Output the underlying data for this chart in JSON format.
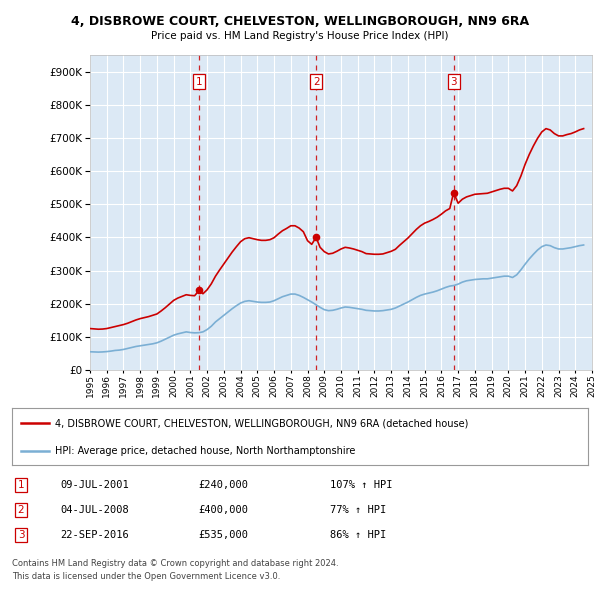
{
  "title": "4, DISBROWE COURT, CHELVESTON, WELLINGBOROUGH, NN9 6RA",
  "subtitle": "Price paid vs. HM Land Registry's House Price Index (HPI)",
  "ylim": [
    0,
    950000
  ],
  "yticks": [
    0,
    100000,
    200000,
    300000,
    400000,
    500000,
    600000,
    700000,
    800000,
    900000
  ],
  "ytick_labels": [
    "£0",
    "£100K",
    "£200K",
    "£300K",
    "£400K",
    "£500K",
    "£600K",
    "£700K",
    "£800K",
    "£900K"
  ],
  "background_color": "#ffffff",
  "plot_bg_color": "#dce9f5",
  "grid_color": "#ffffff",
  "sale_color": "#cc0000",
  "hpi_color": "#7bafd4",
  "sale_label": "4, DISBROWE COURT, CHELVESTON, WELLINGBOROUGH, NN9 6RA (detached house)",
  "hpi_label": "HPI: Average price, detached house, North Northamptonshire",
  "transactions": [
    {
      "num": 1,
      "date": "09-JUL-2001",
      "price": 240000,
      "pct": "107%",
      "dir": "↑",
      "x": 2001.52
    },
    {
      "num": 2,
      "date": "04-JUL-2008",
      "price": 400000,
      "pct": "77%",
      "dir": "↑",
      "x": 2008.51
    },
    {
      "num": 3,
      "date": "22-SEP-2016",
      "price": 535000,
      "pct": "86%",
      "dir": "↑",
      "x": 2016.73
    }
  ],
  "footer1": "Contains HM Land Registry data © Crown copyright and database right 2024.",
  "footer2": "This data is licensed under the Open Government Licence v3.0.",
  "hpi_data": {
    "years": [
      1995.0,
      1995.25,
      1995.5,
      1995.75,
      1996.0,
      1996.25,
      1996.5,
      1996.75,
      1997.0,
      1997.25,
      1997.5,
      1997.75,
      1998.0,
      1998.25,
      1998.5,
      1998.75,
      1999.0,
      1999.25,
      1999.5,
      1999.75,
      2000.0,
      2000.25,
      2000.5,
      2000.75,
      2001.0,
      2001.25,
      2001.5,
      2001.75,
      2002.0,
      2002.25,
      2002.5,
      2002.75,
      2003.0,
      2003.25,
      2003.5,
      2003.75,
      2004.0,
      2004.25,
      2004.5,
      2004.75,
      2005.0,
      2005.25,
      2005.5,
      2005.75,
      2006.0,
      2006.25,
      2006.5,
      2006.75,
      2007.0,
      2007.25,
      2007.5,
      2007.75,
      2008.0,
      2008.25,
      2008.5,
      2008.75,
      2009.0,
      2009.25,
      2009.5,
      2009.75,
      2010.0,
      2010.25,
      2010.5,
      2010.75,
      2011.0,
      2011.25,
      2011.5,
      2011.75,
      2012.0,
      2012.25,
      2012.5,
      2012.75,
      2013.0,
      2013.25,
      2013.5,
      2013.75,
      2014.0,
      2014.25,
      2014.5,
      2014.75,
      2015.0,
      2015.25,
      2015.5,
      2015.75,
      2016.0,
      2016.25,
      2016.5,
      2016.75,
      2017.0,
      2017.25,
      2017.5,
      2017.75,
      2018.0,
      2018.25,
      2018.5,
      2018.75,
      2019.0,
      2019.25,
      2019.5,
      2019.75,
      2020.0,
      2020.25,
      2020.5,
      2020.75,
      2021.0,
      2021.25,
      2021.5,
      2021.75,
      2022.0,
      2022.25,
      2022.5,
      2022.75,
      2023.0,
      2023.25,
      2023.5,
      2023.75,
      2024.0,
      2024.25,
      2024.5
    ],
    "values": [
      55000,
      54500,
      54000,
      54500,
      55500,
      57000,
      59000,
      60000,
      62000,
      65000,
      68000,
      71000,
      73000,
      75000,
      77000,
      79000,
      82000,
      87000,
      93000,
      99000,
      105000,
      109000,
      112000,
      115000,
      113000,
      112000,
      112500,
      115000,
      122000,
      132000,
      145000,
      155000,
      165000,
      175000,
      185000,
      194000,
      202000,
      207000,
      209000,
      207000,
      205000,
      204000,
      204000,
      205000,
      209000,
      215000,
      221000,
      225000,
      229000,
      229000,
      225000,
      219000,
      212000,
      205000,
      197000,
      189000,
      182000,
      179000,
      180000,
      183000,
      187000,
      190000,
      189000,
      187000,
      185000,
      183000,
      180000,
      179000,
      178000,
      178000,
      179000,
      181000,
      183000,
      187000,
      193000,
      199000,
      205000,
      212000,
      219000,
      225000,
      229000,
      232000,
      235000,
      239000,
      244000,
      249000,
      253000,
      255000,
      259000,
      265000,
      269000,
      271000,
      273000,
      274000,
      275000,
      275000,
      277000,
      279000,
      281000,
      283000,
      283000,
      279000,
      287000,
      302000,
      319000,
      335000,
      349000,
      362000,
      372000,
      377000,
      375000,
      369000,
      365000,
      365000,
      367000,
      369000,
      372000,
      375000,
      377000
    ]
  },
  "sale_data": {
    "years": [
      1995.0,
      1995.25,
      1995.5,
      1995.75,
      1996.0,
      1996.25,
      1996.5,
      1996.75,
      1997.0,
      1997.25,
      1997.5,
      1997.75,
      1998.0,
      1998.25,
      1998.5,
      1998.75,
      1999.0,
      1999.25,
      1999.5,
      1999.75,
      2000.0,
      2000.25,
      2000.5,
      2000.75,
      2001.0,
      2001.25,
      2001.52,
      2001.75,
      2002.0,
      2002.25,
      2002.5,
      2002.75,
      2003.0,
      2003.25,
      2003.5,
      2003.75,
      2004.0,
      2004.25,
      2004.5,
      2004.75,
      2005.0,
      2005.25,
      2005.5,
      2005.75,
      2006.0,
      2006.25,
      2006.5,
      2006.75,
      2007.0,
      2007.25,
      2007.5,
      2007.75,
      2008.0,
      2008.25,
      2008.51,
      2008.75,
      2009.0,
      2009.25,
      2009.5,
      2009.75,
      2010.0,
      2010.25,
      2010.5,
      2010.75,
      2011.0,
      2011.25,
      2011.5,
      2011.75,
      2012.0,
      2012.25,
      2012.5,
      2012.75,
      2013.0,
      2013.25,
      2013.5,
      2013.75,
      2014.0,
      2014.25,
      2014.5,
      2014.75,
      2015.0,
      2015.25,
      2015.5,
      2015.75,
      2016.0,
      2016.25,
      2016.5,
      2016.73,
      2017.0,
      2017.25,
      2017.5,
      2017.75,
      2018.0,
      2018.25,
      2018.5,
      2018.75,
      2019.0,
      2019.25,
      2019.5,
      2019.75,
      2020.0,
      2020.25,
      2020.5,
      2020.75,
      2021.0,
      2021.25,
      2021.5,
      2021.75,
      2022.0,
      2022.25,
      2022.5,
      2022.75,
      2023.0,
      2023.25,
      2023.5,
      2023.75,
      2024.0,
      2024.25,
      2024.5
    ],
    "values": [
      125000,
      124000,
      123000,
      123500,
      125000,
      128000,
      131000,
      134000,
      137000,
      141000,
      146000,
      151000,
      155000,
      158000,
      161000,
      165000,
      169000,
      178000,
      188000,
      199000,
      210000,
      217000,
      222000,
      227000,
      225000,
      224000,
      240000,
      230000,
      242000,
      260000,
      283000,
      302000,
      320000,
      338000,
      356000,
      372000,
      387000,
      396000,
      399000,
      396000,
      393000,
      391000,
      391000,
      393000,
      399000,
      410000,
      420000,
      427000,
      435000,
      435000,
      428000,
      417000,
      390000,
      379000,
      400000,
      370000,
      357000,
      350000,
      352000,
      358000,
      365000,
      370000,
      368000,
      365000,
      361000,
      357000,
      351000,
      350000,
      349000,
      349000,
      350000,
      354000,
      358000,
      364000,
      376000,
      387000,
      398000,
      411000,
      424000,
      435000,
      443000,
      448000,
      454000,
      461000,
      470000,
      480000,
      487000,
      535000,
      503000,
      515000,
      522000,
      526000,
      530000,
      531000,
      532000,
      533000,
      537000,
      541000,
      545000,
      548000,
      548000,
      540000,
      556000,
      585000,
      620000,
      650000,
      676000,
      699000,
      718000,
      728000,
      724000,
      713000,
      706000,
      706000,
      710000,
      713000,
      718000,
      724000,
      728000
    ]
  }
}
